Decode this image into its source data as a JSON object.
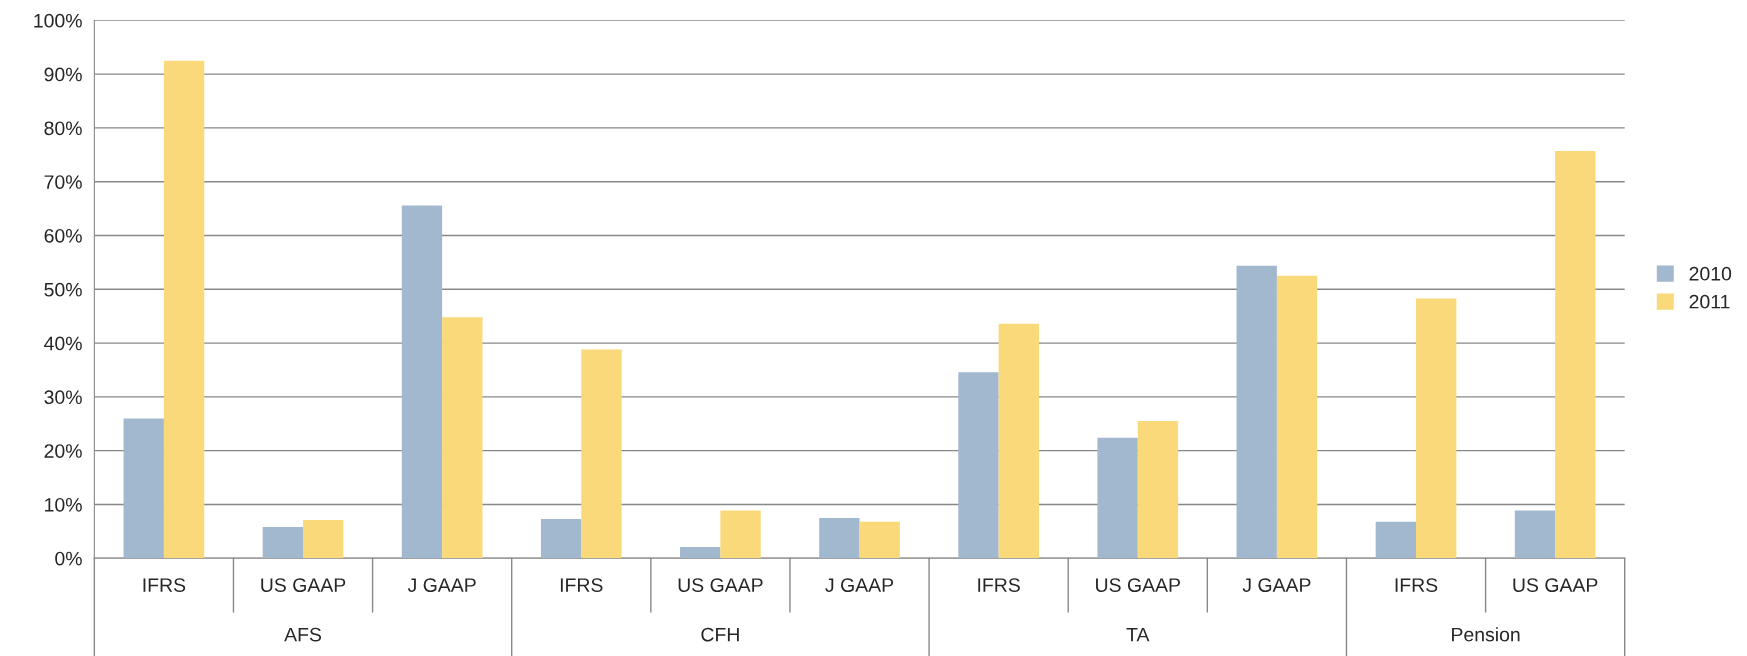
{
  "chart_data": {
    "type": "bar",
    "categories": [
      "IFRS",
      "US GAAP",
      "J GAAP",
      "IFRS",
      "US GAAP",
      "J GAAP",
      "IFRS",
      "US GAAP",
      "J GAAP",
      "IFRS",
      "US GAAP"
    ],
    "series": [
      {
        "name": "2010",
        "color": "#a2b8cf",
        "values": [
          26,
          5.8,
          65.6,
          7.3,
          2.1,
          7.5,
          34.6,
          22.4,
          54.4,
          6.8,
          8.9
        ]
      },
      {
        "name": "2011",
        "color": "#fad97a",
        "values": [
          92.5,
          7.1,
          44.8,
          38.8,
          8.9,
          6.8,
          43.6,
          25.5,
          52.5,
          48.3,
          75.7
        ]
      }
    ],
    "annotations": [
      "AFS",
      "CFH",
      "TA",
      "Pension"
    ],
    "ylim": [
      0,
      100
    ],
    "yticks": [
      {
        "value": 0,
        "label": "0%"
      },
      {
        "value": 10,
        "label": "10%"
      },
      {
        "value": 20,
        "label": "20%"
      },
      {
        "value": 30,
        "label": "30%"
      },
      {
        "value": 40,
        "label": "40%"
      },
      {
        "value": 50,
        "label": "50%"
      },
      {
        "value": 60,
        "label": "60%"
      },
      {
        "value": 70,
        "label": "70%"
      },
      {
        "value": 80,
        "label": "80%"
      },
      {
        "value": 90,
        "label": "90%"
      },
      {
        "value": 100,
        "label": "100%"
      }
    ],
    "grid": "y",
    "legend": "right"
  }
}
